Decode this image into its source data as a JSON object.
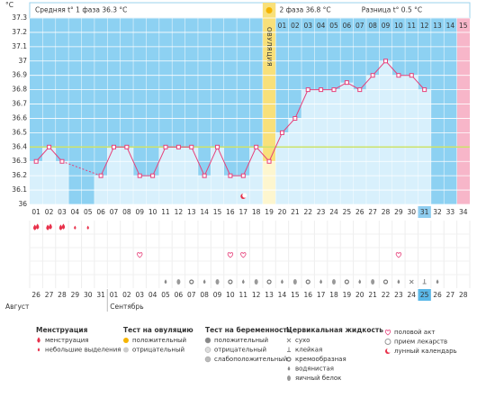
{
  "chart_data": {
    "type": "line",
    "unit": "°C",
    "header": {
      "phase1": "Средняя t° 1 фаза 36.3 °C",
      "phase2": "2 фаза 36.8 °C",
      "diff": "Разница t° 0.5 °C",
      "ovulation": "ОВУЛЯЦИЯ"
    },
    "categories": [
      "01",
      "02",
      "03",
      "04",
      "05",
      "06",
      "07",
      "08",
      "09",
      "10",
      "11",
      "12",
      "13",
      "14",
      "15",
      "16",
      "17",
      "18",
      "19",
      "20",
      "21",
      "22",
      "23",
      "24",
      "25",
      "26",
      "27",
      "28",
      "29",
      "30",
      "31",
      "32",
      "33",
      "34"
    ],
    "values": [
      36.3,
      36.4,
      36.3,
      null,
      null,
      36.2,
      36.4,
      36.4,
      36.2,
      36.2,
      36.4,
      36.4,
      36.4,
      36.2,
      36.4,
      36.2,
      36.2,
      36.4,
      36.3,
      36.5,
      36.6,
      36.8,
      36.8,
      36.8,
      36.85,
      36.8,
      36.9,
      37.0,
      36.9,
      36.9,
      36.8,
      null,
      null,
      null
    ],
    "color": "#e6407a",
    "coverline": 36.4,
    "coverline_color": "#cde36a",
    "phase2_days": [
      "01",
      "02",
      "03",
      "04",
      "05",
      "06",
      "07",
      "08",
      "09",
      "10",
      "11",
      "12",
      "13",
      "14",
      "15"
    ],
    "dates": [
      "26",
      "27",
      "28",
      "29",
      "30",
      "31",
      "01",
      "02",
      "03",
      "04",
      "05",
      "06",
      "07",
      "08",
      "09",
      "10",
      "11",
      "12",
      "13",
      "14",
      "15",
      "16",
      "17",
      "18",
      "19",
      "20",
      "21",
      "22",
      "23",
      "24",
      "25",
      "26",
      "27",
      "28"
    ],
    "date_colors": [
      "#333",
      "#e0304a",
      "#e0304a",
      "#333",
      "#333",
      "#333",
      "#333",
      "#333",
      "#e0304a",
      "#e0304a",
      "#333",
      "#333",
      "#333",
      "#333",
      "#333",
      "#e0304a",
      "#e0304a",
      "#333",
      "#333",
      "#333",
      "#333",
      "#333",
      "#e0304a",
      "#e0304a",
      "#333",
      "#333",
      "#333",
      "#333",
      "#333",
      "#e0304a",
      "#333",
      "#333",
      "#333",
      "#333"
    ],
    "months": [
      "Август",
      "Сентябрь"
    ],
    "ylim": [
      36,
      37.3
    ],
    "yticks": [
      36,
      36.1,
      36.2,
      36.3,
      36.4,
      36.5,
      36.6,
      36.7,
      36.8,
      36.9,
      37,
      37.1,
      37.2,
      37.3
    ],
    "grid": true
  },
  "legend": {
    "groups": [
      {
        "title": "Менструация",
        "items": [
          "менструация",
          "небольшие выделения"
        ]
      },
      {
        "title": "Тест на овуляцию",
        "items": [
          "положительный",
          "отрицательный"
        ]
      },
      {
        "title": "Тест на беременность",
        "items": [
          "положительный",
          "отрицательный",
          "слабоположительный"
        ]
      },
      {
        "title": "Цервикальная жидкость",
        "items": [
          "сухо",
          "клейкая",
          "кремообразная",
          "водянистая",
          "яичный белок"
        ]
      },
      {
        "title": "",
        "items": [
          "половой акт",
          "прием лекарств",
          "лунный календарь"
        ]
      }
    ]
  }
}
